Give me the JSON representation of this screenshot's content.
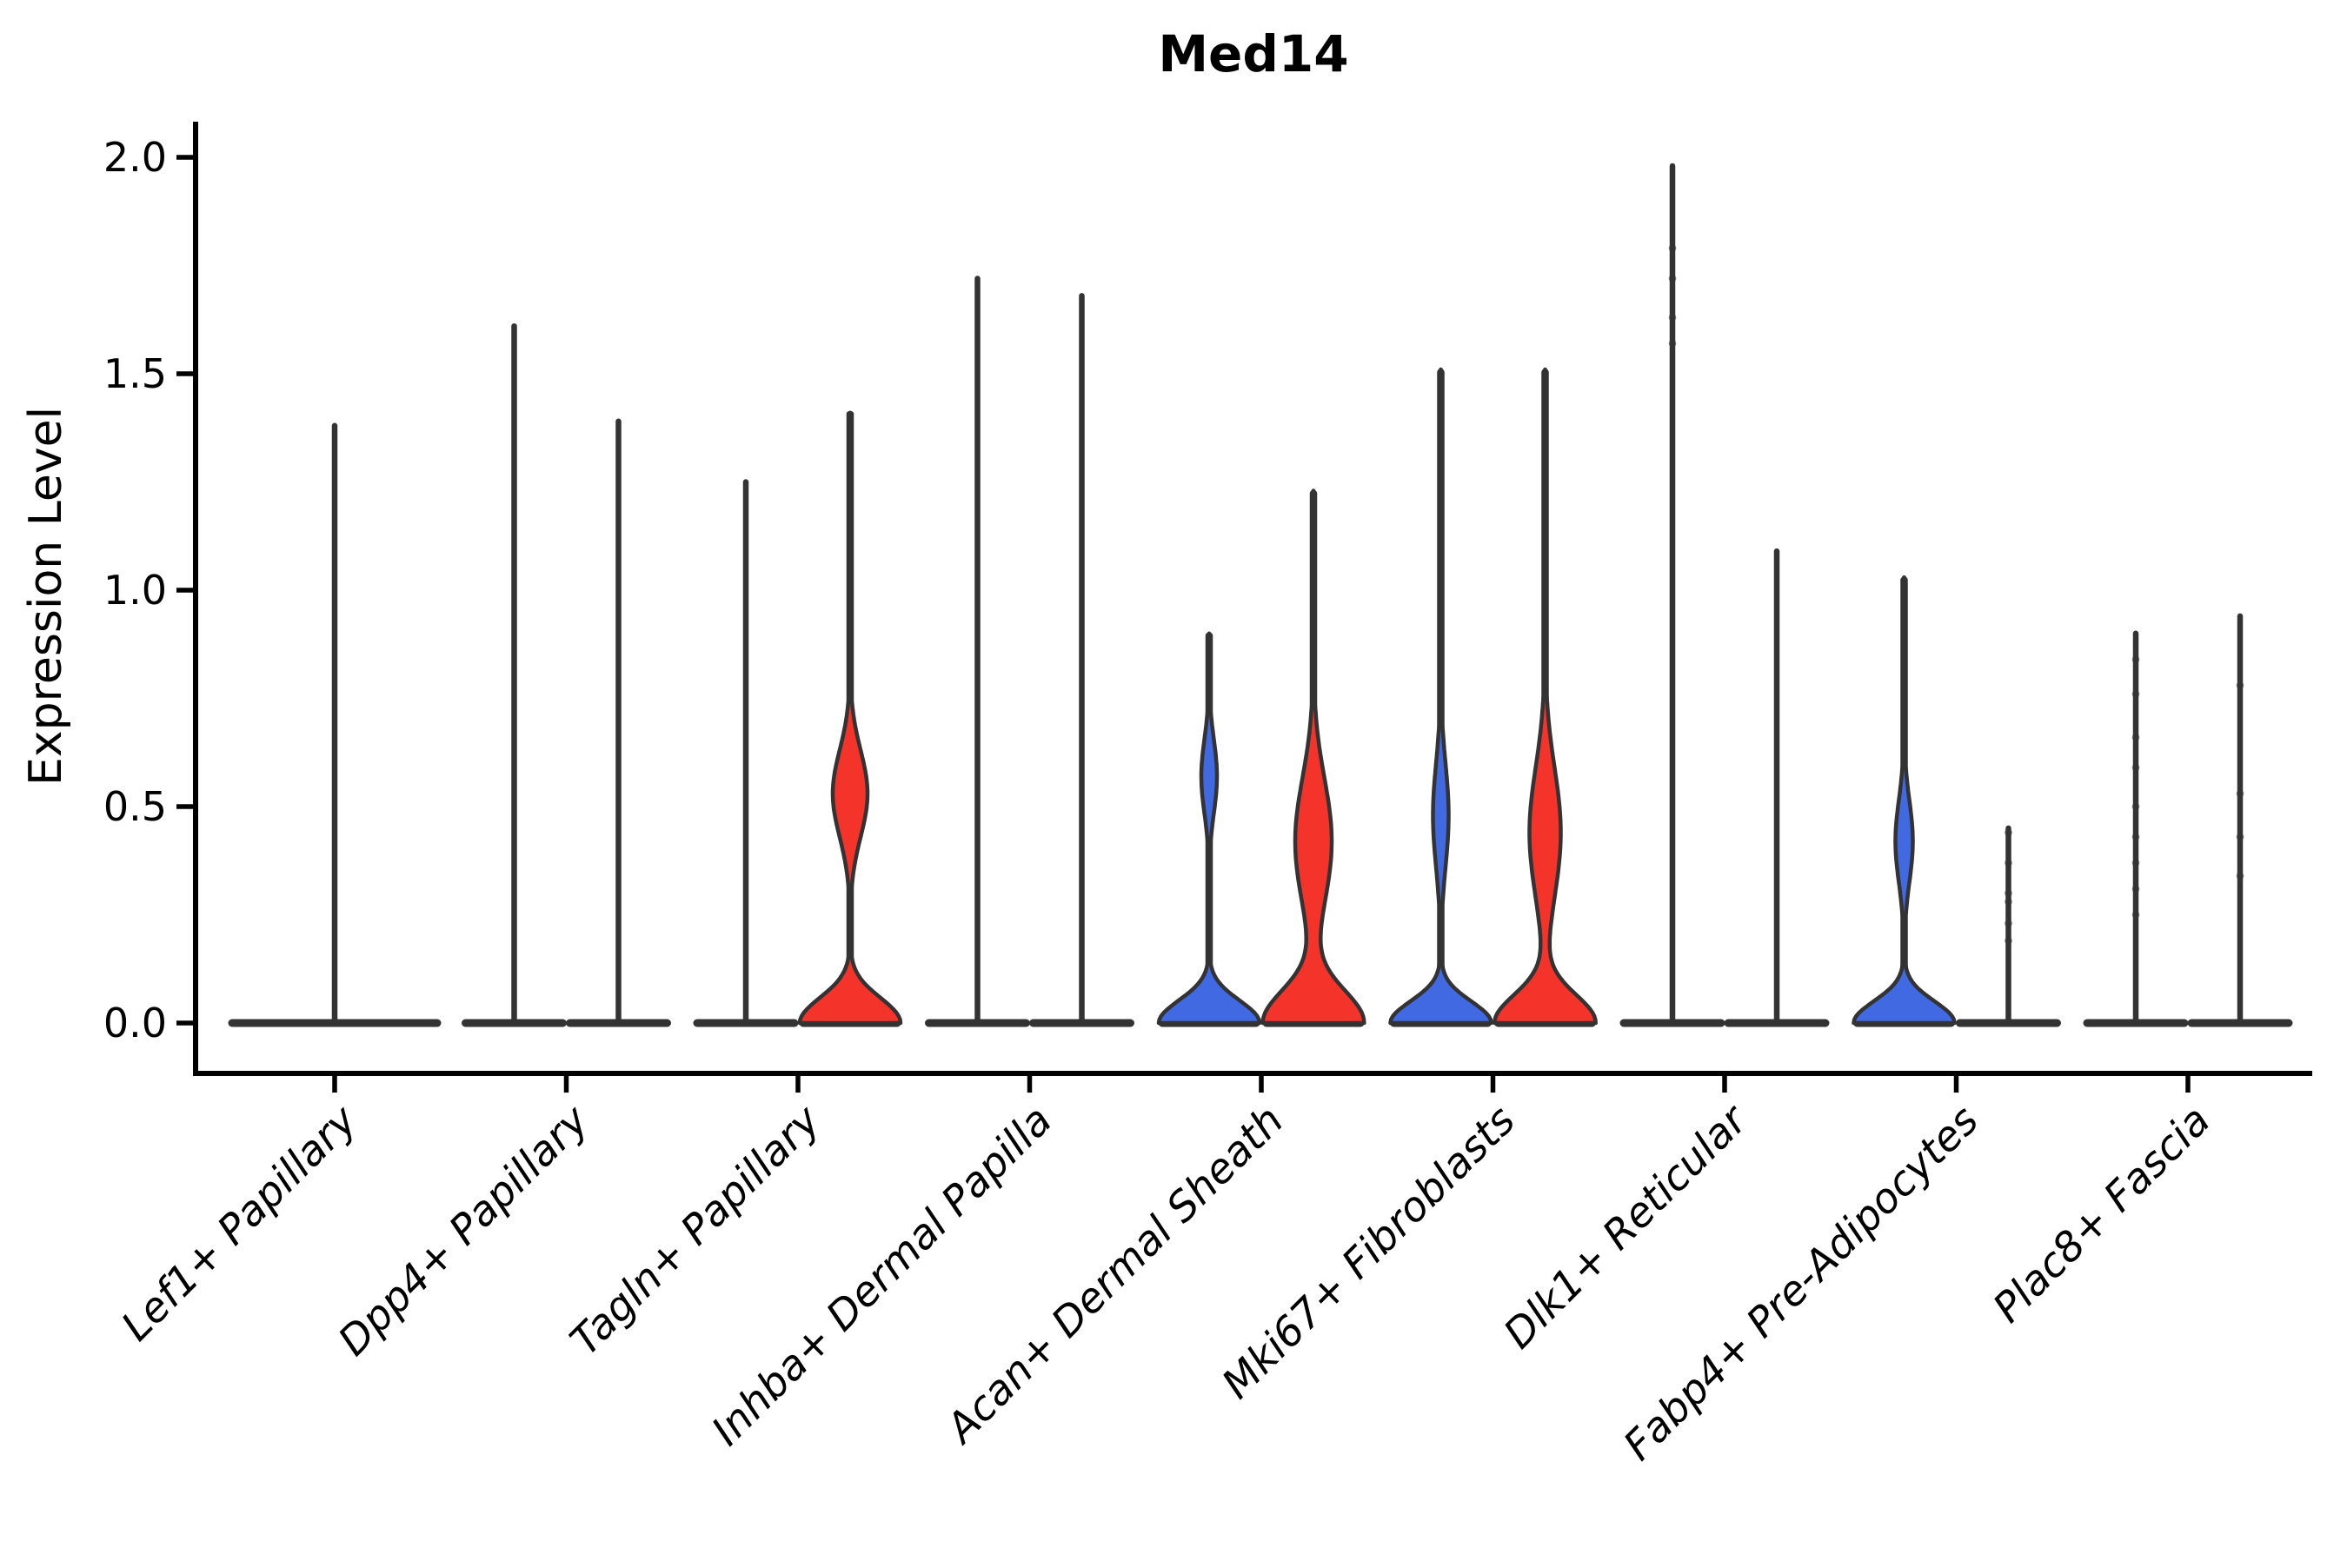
{
  "title": "Med14",
  "axes": {
    "ylabel": "Expression Level",
    "ytick_labels": [
      "0.0",
      "0.5",
      "1.0",
      "1.5",
      "2.0"
    ],
    "yticks": [
      0.0,
      0.5,
      1.0,
      1.5,
      2.0
    ],
    "ylim": [
      0.0,
      2.05
    ]
  },
  "colors": {
    "blue": "#4169E1",
    "red": "#F4332B",
    "outline": "#333333",
    "axis": "#000000",
    "text": "#000000"
  },
  "chart_data": {
    "type": "violin",
    "title": "Med14",
    "ylabel": "Expression Level",
    "yticks": [
      0.0,
      0.5,
      1.0,
      1.5,
      2.0
    ],
    "groups": [
      "blue",
      "red"
    ],
    "legend": "none",
    "grid": false,
    "categories": [
      {
        "label": "Lef1+ Papillary",
        "violins": [
          {
            "group": "single",
            "max": 1.38,
            "base_halfwidth": 122,
            "body": null,
            "dots": []
          }
        ]
      },
      {
        "label": "Dpp4+ Papillary",
        "violins": [
          {
            "group": "blue",
            "max": 1.61,
            "base_halfwidth": 60,
            "body": null,
            "dots": []
          },
          {
            "group": "red",
            "max": 1.39,
            "base_halfwidth": 60,
            "body": null,
            "dots": []
          }
        ]
      },
      {
        "label": "Tagln+ Papillary",
        "violins": [
          {
            "group": "blue",
            "max": 1.25,
            "base_halfwidth": 60,
            "body": null,
            "dots": []
          },
          {
            "group": "red",
            "max": 1.41,
            "base_halfwidth": 58,
            "body": {
              "amp": 20,
              "peak": 0.53,
              "sigma": 0.1,
              "base_sigma": 0.058
            },
            "dots": []
          }
        ]
      },
      {
        "label": "Inhba+ Dermal Papilla",
        "violins": [
          {
            "group": "blue",
            "max": 1.72,
            "base_halfwidth": 60,
            "body": null,
            "dots": []
          },
          {
            "group": "red",
            "max": 1.68,
            "base_halfwidth": 60,
            "body": null,
            "dots": []
          }
        ]
      },
      {
        "label": "Acan+ Dermal Sheath",
        "violins": [
          {
            "group": "blue",
            "max": 0.9,
            "base_halfwidth": 58,
            "body": {
              "amp": 9,
              "peak": 0.57,
              "sigma": 0.085,
              "base_sigma": 0.052
            },
            "dots": []
          },
          {
            "group": "red",
            "max": 1.23,
            "base_halfwidth": 58,
            "body": {
              "amp": 21,
              "peak": 0.42,
              "sigma": 0.145,
              "base_sigma": 0.075
            },
            "dots": []
          }
        ]
      },
      {
        "label": "Mki67+ Fibroblasts",
        "violins": [
          {
            "group": "blue",
            "max": 1.51,
            "base_halfwidth": 58,
            "body": {
              "amp": 9,
              "peak": 0.48,
              "sigma": 0.12,
              "base_sigma": 0.05
            },
            "dots": []
          },
          {
            "group": "red",
            "max": 1.51,
            "base_halfwidth": 58,
            "body": {
              "amp": 18,
              "peak": 0.44,
              "sigma": 0.15,
              "base_sigma": 0.065
            },
            "dots": []
          }
        ]
      },
      {
        "label": "Dlk1+ Reticular",
        "violins": [
          {
            "group": "blue",
            "max": 1.98,
            "base_halfwidth": 60,
            "body": null,
            "dots": [
              1.79,
              1.72,
              1.63,
              1.57
            ]
          },
          {
            "group": "red",
            "max": 1.09,
            "base_halfwidth": 60,
            "body": null,
            "dots": []
          }
        ]
      },
      {
        "label": "Fabp4+ Pre-Adipocytes",
        "violins": [
          {
            "group": "blue",
            "max": 1.03,
            "base_halfwidth": 58,
            "body": {
              "amp": 10,
              "peak": 0.42,
              "sigma": 0.095,
              "base_sigma": 0.05
            },
            "dots": []
          },
          {
            "group": "red",
            "max": 0.45,
            "base_halfwidth": 60,
            "body": null,
            "dots": [
              0.44,
              0.37,
              0.3,
              0.28,
              0.23,
              0.19
            ]
          }
        ]
      },
      {
        "label": "Plac8+ Fascia",
        "violins": [
          {
            "group": "blue",
            "max": 0.9,
            "base_halfwidth": 60,
            "body": null,
            "dots": [
              0.84,
              0.76,
              0.66,
              0.59,
              0.5,
              0.43,
              0.37,
              0.31,
              0.25
            ]
          },
          {
            "group": "red",
            "max": 0.94,
            "base_halfwidth": 60,
            "body": null,
            "dots": [
              0.78,
              0.53,
              0.43,
              0.34
            ]
          }
        ]
      }
    ]
  }
}
